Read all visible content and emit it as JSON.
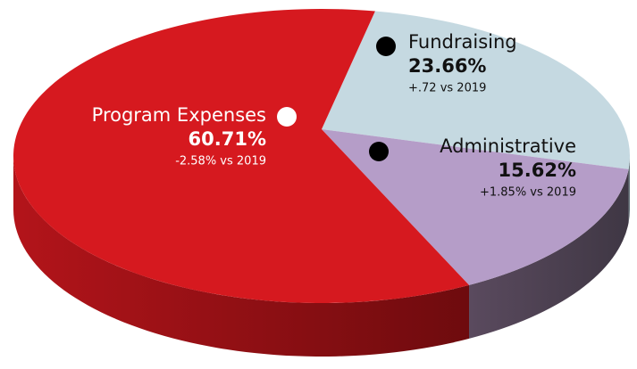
{
  "chart_data": {
    "type": "pie",
    "categories": [
      "Fundraising",
      "Administrative",
      "Program Expenses"
    ],
    "values": [
      23.66,
      15.62,
      60.71
    ],
    "value_labels": [
      "23.66%",
      "15.62%",
      "60.71%"
    ],
    "annotations": [
      "+.72 vs 2019",
      "+1.85% vs 2019",
      "-2.58% vs 2019"
    ],
    "colors": [
      "#c5d9e1",
      "#b59dc8",
      "#d6191f"
    ]
  }
}
